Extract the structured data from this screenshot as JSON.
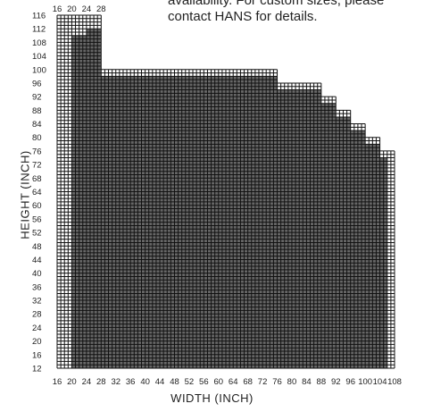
{
  "note": {
    "line1": "availability. For custom sizes, please",
    "line2": "contact HANS for details."
  },
  "chart_data": {
    "type": "table",
    "xlabel": "WIDTH (INCH)",
    "ylabel": "HEIGHT (INCH)",
    "xlim": [
      16,
      108
    ],
    "ylim": [
      12,
      116
    ],
    "x_ticks": [
      16,
      20,
      24,
      28,
      32,
      36,
      40,
      44,
      48,
      52,
      56,
      60,
      64,
      68,
      72,
      76,
      80,
      84,
      88,
      92,
      96,
      100,
      104,
      108
    ],
    "y_ticks": [
      12,
      16,
      20,
      24,
      28,
      32,
      36,
      40,
      44,
      48,
      52,
      56,
      60,
      64,
      68,
      72,
      76,
      80,
      84,
      88,
      92,
      96,
      100,
      104,
      108,
      112,
      116
    ],
    "top_x_labels": [
      16,
      20,
      24,
      28
    ],
    "available_region": [
      {
        "width_from": 20,
        "width_to": 24,
        "max_height": 110
      },
      {
        "width_from": 24,
        "width_to": 28,
        "max_height": 112
      },
      {
        "width_from": 28,
        "width_to": 76,
        "max_height": 98
      },
      {
        "width_from": 76,
        "width_to": 88,
        "max_height": 94
      },
      {
        "width_from": 88,
        "width_to": 92,
        "max_height": 90
      },
      {
        "width_from": 92,
        "width_to": 96,
        "max_height": 86
      },
      {
        "width_from": 96,
        "width_to": 100,
        "max_height": 82
      },
      {
        "width_from": 100,
        "width_to": 104,
        "max_height": 78
      },
      {
        "width_from": 104,
        "width_to": 106,
        "max_height": 74
      }
    ],
    "grid_outline": [
      {
        "width_from": 16,
        "width_to": 20,
        "max_height": 116
      },
      {
        "width_from": 20,
        "width_to": 24,
        "max_height": 116
      },
      {
        "width_from": 24,
        "width_to": 28,
        "max_height": 116
      },
      {
        "width_from": 28,
        "width_to": 76,
        "max_height": 100
      },
      {
        "width_from": 76,
        "width_to": 88,
        "max_height": 96
      },
      {
        "width_from": 88,
        "width_to": 92,
        "max_height": 92
      },
      {
        "width_from": 92,
        "width_to": 96,
        "max_height": 88
      },
      {
        "width_from": 96,
        "width_to": 100,
        "max_height": 84
      },
      {
        "width_from": 100,
        "width_to": 104,
        "max_height": 80
      },
      {
        "width_from": 104,
        "width_to": 108,
        "max_height": 76
      }
    ],
    "colors": {
      "available": "#666666",
      "grid": "#111111",
      "empty": "#ffffff"
    },
    "grid": true
  }
}
